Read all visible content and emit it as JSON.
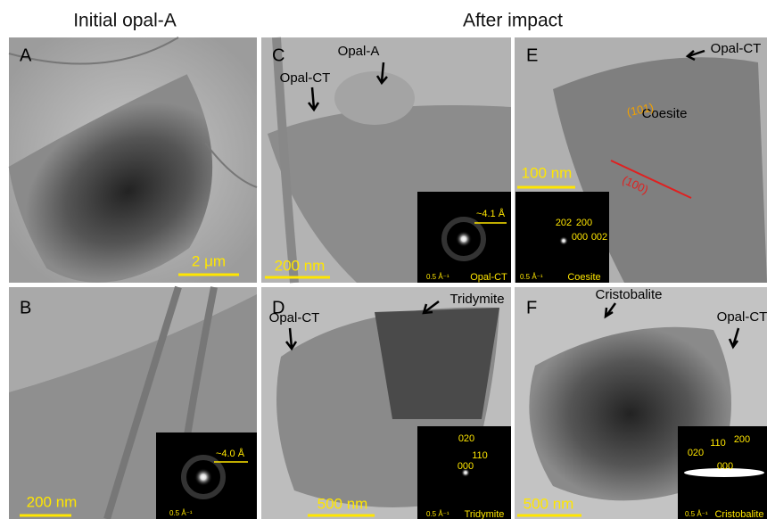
{
  "headers": [
    "Initial opal-A",
    "After impact"
  ],
  "panels": [
    {
      "letter": "A",
      "scale_bar": "2 μm"
    },
    {
      "letter": "B",
      "scale_bar": "200 nm",
      "inset": {
        "spacing": "~4.0 Å",
        "scale": "0.5 Å⁻¹"
      }
    },
    {
      "letter": "C",
      "scale_bar": "200 nm",
      "labels": [
        "Opal-A",
        "Opal-CT"
      ],
      "inset": {
        "spacing": "~4.1 Å",
        "scale": "0.5 Å⁻¹",
        "phase": "Opal-CT"
      }
    },
    {
      "letter": "D",
      "scale_bar": "500 nm",
      "labels": [
        "Opal-CT",
        "Tridymite"
      ],
      "inset": {
        "reflections": [
          "020",
          "110",
          "000"
        ],
        "scale": "0.5 Å⁻¹",
        "phase": "Tridymite"
      }
    },
    {
      "letter": "E",
      "scale_bar": "100 nm",
      "labels": [
        "Opal-CT",
        "Coesite",
        "(101)",
        "(100)"
      ],
      "inset": {
        "reflections": [
          "202",
          "200",
          "000",
          "002"
        ],
        "scale": "0.5 Å⁻¹",
        "phase": "Coesite"
      }
    },
    {
      "letter": "F",
      "scale_bar": "500 nm",
      "labels": [
        "Cristobalite",
        "Opal-CT"
      ],
      "inset": {
        "reflections": [
          "020",
          "110",
          "200",
          "000"
        ],
        "scale": "0.5 Å⁻¹",
        "phase": "Cristobalite"
      }
    }
  ]
}
